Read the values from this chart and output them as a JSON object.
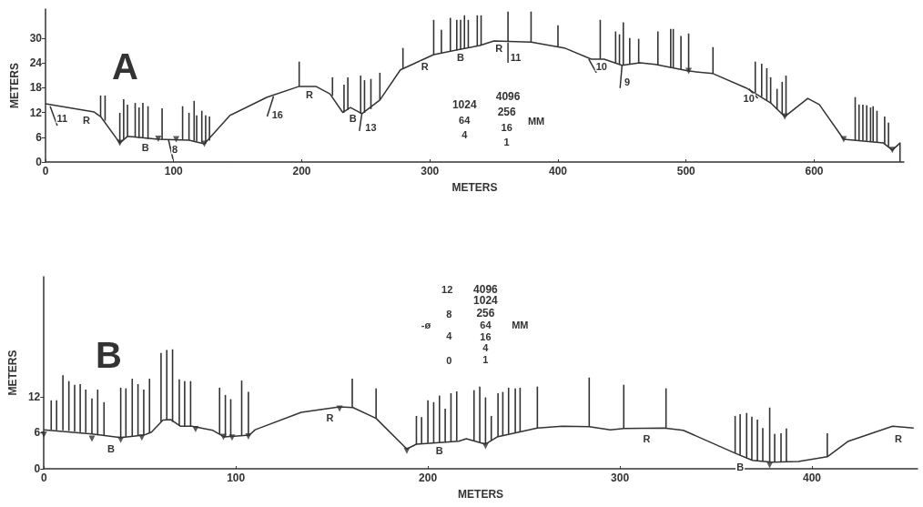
{
  "chart_data": [
    {
      "type": "line",
      "title": "A",
      "xlabel": "METERS",
      "ylabel": "METERS",
      "xlim": [
        0,
        670
      ],
      "ylim": [
        0,
        37
      ],
      "xticks": [
        0,
        100,
        200,
        300,
        400,
        500,
        600
      ],
      "yticks": [
        0,
        6,
        12,
        18,
        24,
        30
      ],
      "series": [
        {
          "color": "#333333",
          "marker": "none",
          "x": [
            0,
            38,
            43,
            58,
            64,
            88,
            112,
            124,
            144,
            173,
            198,
            211,
            222,
            232,
            238,
            247,
            261,
            277,
            303,
            339,
            350,
            379,
            405,
            426,
            436,
            450,
            464,
            476,
            502,
            521,
            547,
            566,
            577,
            595,
            604,
            623,
            654,
            661,
            667,
            667
          ],
          "values": [
            14.1,
            12.1,
            11,
            4.6,
            6.2,
            5.5,
            5.3,
            4.4,
            11.3,
            15.7,
            18.3,
            18.3,
            16.5,
            12,
            13.2,
            11.7,
            15,
            22.3,
            26,
            28.2,
            29.3,
            29,
            27.6,
            24.9,
            24.9,
            23.4,
            24,
            23.6,
            22,
            21.4,
            17.9,
            14.3,
            11,
            15.4,
            13.9,
            5.5,
            4.6,
            2.9,
            4.6,
            0
          ]
        },
        {
          "type": "bar",
          "color": "#333333",
          "x": [
            43,
            46.5,
            58,
            61,
            64,
            70,
            73,
            76,
            80,
            91,
            107,
            112,
            116,
            118,
            122,
            125,
            128,
            198,
            224,
            233,
            236,
            246,
            249,
            254,
            261,
            279,
            303,
            309,
            316,
            321,
            324,
            327,
            330,
            337,
            340,
            361,
            379,
            400,
            433,
            445,
            448,
            451,
            456,
            463,
            478,
            488,
            490,
            496,
            502,
            521,
            554,
            559,
            563,
            566,
            571,
            575,
            578,
            632,
            635,
            638,
            641,
            644,
            646,
            649,
            655,
            658
          ],
          "base": [
            11,
            10,
            4.6,
            5.5,
            6.2,
            6,
            5.8,
            5.7,
            5.6,
            5.5,
            5.4,
            5.3,
            5.1,
            5,
            4.7,
            4.5,
            5.2,
            18.3,
            16,
            12,
            12.6,
            11.7,
            11.9,
            12.8,
            15,
            22.6,
            26,
            26.3,
            26.7,
            27,
            27.2,
            27.4,
            27.6,
            28,
            28.2,
            29.2,
            29,
            27.9,
            24.9,
            24,
            23.7,
            23.4,
            23.7,
            24,
            23.5,
            22.8,
            22.7,
            22.4,
            22,
            21.4,
            16.6,
            15.8,
            15,
            14.3,
            12.8,
            11.6,
            11,
            5.3,
            5.3,
            5.2,
            5.1,
            5,
            4.9,
            4.8,
            4.4,
            3.8
          ],
          "values": [
            5.1,
            6.1,
            7.3,
            9.7,
            7.7,
            8.3,
            7.4,
            8.6,
            7.9,
            7.5,
            8.1,
            6.6,
            9.7,
            6.3,
            7.7,
            6.8,
            5.8,
            6,
            4.5,
            6.7,
            7.9,
            9.2,
            7.9,
            7.3,
            6.6,
            5,
            8.4,
            5.7,
            8.2,
            7.4,
            7.2,
            8.1,
            6.8,
            7.5,
            7.3,
            7.2,
            7.4,
            5.2,
            9.5,
            7.6,
            7.2,
            10.4,
            6.3,
            5.8,
            8.1,
            9.4,
            9.5,
            8.1,
            9.1,
            6.4,
            7.7,
            8,
            7.7,
            6.2,
            4.9,
            7.8,
            9.9,
            10.4,
            8.6,
            8.7,
            8.6,
            8.2,
            8.6,
            7.6,
            6.6,
            5.7
          ]
        },
        {
          "type": "scatter",
          "color": "#333333",
          "marker": "triangle",
          "x": [
            58,
            88,
            102,
            124,
            502,
            577,
            623,
            661
          ],
          "values": [
            4.6,
            5.6,
            5.5,
            4.4,
            22,
            11,
            5.5,
            2.9
          ]
        },
        {
          "color": "#333333",
          "marker": "none",
          "x": [
            3.6,
            9.2
          ],
          "values": [
            13.5,
            8.8
          ]
        },
        {
          "color": "#333333",
          "marker": "none",
          "x": [
            95.9,
            99.5
          ],
          "values": [
            5.5,
            0.7
          ]
        },
        {
          "color": "#333333",
          "marker": "none",
          "x": [
            178,
            173
          ],
          "values": [
            15.9,
            11
          ]
        },
        {
          "color": "#333333",
          "marker": "none",
          "x": [
            247,
            245
          ],
          "values": [
            11.9,
            7.5
          ]
        },
        {
          "color": "#333333",
          "marker": "none",
          "x": [
            361,
            361
          ],
          "values": [
            28.9,
            24
          ]
        },
        {
          "color": "#333333",
          "marker": "none",
          "x": [
            424,
            430
          ],
          "values": [
            24.9,
            21.6
          ]
        },
        {
          "color": "#333333",
          "marker": "none",
          "x": [
            450,
            448.5
          ],
          "values": [
            23.4,
            17.9
          ]
        },
        {
          "color": "#333333",
          "marker": "none",
          "x": [
            549,
            556
          ],
          "values": [
            17.7,
            15.4
          ]
        }
      ],
      "annotations": [
        "R",
        "B",
        "R",
        "B",
        "R",
        "B",
        "R",
        "11",
        "8",
        "16",
        "13",
        "11",
        "10",
        "9",
        "10",
        "1024",
        "64",
        "4",
        "4096",
        "256",
        "16",
        "1",
        "MM"
      ]
    },
    {
      "type": "line",
      "title": "B",
      "xlabel": "METERS",
      "ylabel": "METERS",
      "xlim": [
        0,
        455
      ],
      "ylim": [
        0,
        32
      ],
      "xticks": [
        0,
        100,
        200,
        300,
        400
      ],
      "yticks": [
        0,
        6,
        12
      ],
      "series": [
        {
          "color": "#333333",
          "marker": "none",
          "x": [
            0,
            25,
            40,
            52,
            56,
            62,
            66,
            71,
            77,
            88,
            94,
            107,
            110,
            134,
            154,
            161,
            173,
            189,
            194,
            216,
            220,
            230,
            236,
            257,
            270,
            284,
            295,
            302,
            323,
            333,
            360,
            369,
            379,
            393,
            408,
            419,
            442,
            453
          ],
          "values": [
            6.5,
            5.8,
            5.2,
            5.6,
            6.1,
            8.1,
            8.2,
            7.1,
            7.1,
            6.4,
            5.3,
            5.6,
            6.5,
            9.4,
            10.3,
            10.2,
            8.4,
            3.3,
            4.1,
            4.6,
            5,
            4.1,
            5.3,
            6.8,
            7.1,
            7,
            6.5,
            6.7,
            6.8,
            6.4,
            2.6,
            1.4,
            1.1,
            1.2,
            2,
            4.6,
            7.1,
            6.8
          ]
        },
        {
          "type": "bar",
          "color": "#333333",
          "x": [
            3.8,
            6.6,
            9.9,
            13,
            16,
            18.9,
            21.8,
            25,
            28,
            31.3,
            40,
            42.7,
            46,
            49,
            52,
            55,
            61,
            64,
            67,
            70.5,
            73.3,
            76.4,
            91.5,
            94.5,
            97.3,
            103,
            106.5,
            160.6,
            173,
            194,
            196.7,
            200,
            203,
            206,
            209,
            212,
            215,
            224,
            227,
            230,
            233,
            236.5,
            239,
            242,
            245.5,
            248,
            257,
            284,
            302,
            324,
            360,
            362.6,
            366,
            368.7,
            371.6,
            374.4,
            378,
            380.6,
            383.9,
            386.7,
            408
          ],
          "base": [
            6.5,
            6.4,
            6.4,
            6.3,
            6.2,
            6.1,
            6,
            5.8,
            5.6,
            5.5,
            5.2,
            5.3,
            5.4,
            5.5,
            5.6,
            5.9,
            7.8,
            8.2,
            7.8,
            7.2,
            7.1,
            7.1,
            5.8,
            5.3,
            5.4,
            5.5,
            5.6,
            10.2,
            8.4,
            4.1,
            4.2,
            4.3,
            4.4,
            4.4,
            4.5,
            4.5,
            4.6,
            4.7,
            4.4,
            4.1,
            4.7,
            5.3,
            5.5,
            5.8,
            6,
            6.2,
            6.8,
            7,
            6.7,
            6.8,
            2.6,
            2.3,
            1.8,
            1.5,
            1.3,
            1.2,
            1.1,
            1.1,
            1.1,
            1.2,
            2
          ],
          "values": [
            4.9,
            5,
            9.2,
            8.3,
            7.8,
            8,
            7.2,
            5.9,
            7.6,
            5.6,
            8.3,
            8.1,
            9.6,
            8.6,
            7.6,
            9.1,
            11.5,
            11.6,
            12.1,
            7.7,
            7.5,
            7.5,
            7.7,
            7,
            6.2,
            9.2,
            7.2,
            4.8,
            5,
            4.7,
            4.4,
            7.1,
            6.7,
            7.8,
            5.5,
            8.1,
            8.3,
            8.4,
            9.3,
            7.8,
            4.1,
            7.3,
            7.3,
            7.7,
            7.4,
            7.3,
            6.9,
            8.2,
            7.3,
            6.6,
            6.2,
            6.8,
            7.5,
            7.2,
            6.9,
            5.6,
            9.1,
            4.7,
            4.8,
            5.5,
            3.9
          ]
        },
        {
          "type": "scatter",
          "color": "#333333",
          "marker": "triangle",
          "x": [
            0,
            25,
            40,
            51,
            79,
            93.5,
            98,
            106.5,
            154,
            189,
            230,
            378
          ],
          "values": [
            5.7,
            5,
            4.8,
            5.2,
            6.6,
            5.3,
            5.2,
            5.4,
            10,
            3,
            3.8,
            0.6
          ]
        }
      ],
      "annotations": [
        "B",
        "R",
        "B",
        "R",
        "B",
        "R",
        "12",
        "8",
        "4",
        "0",
        "-ø",
        "4096",
        "1024",
        "256",
        "64",
        "16",
        "4",
        "1",
        "MM"
      ]
    }
  ]
}
